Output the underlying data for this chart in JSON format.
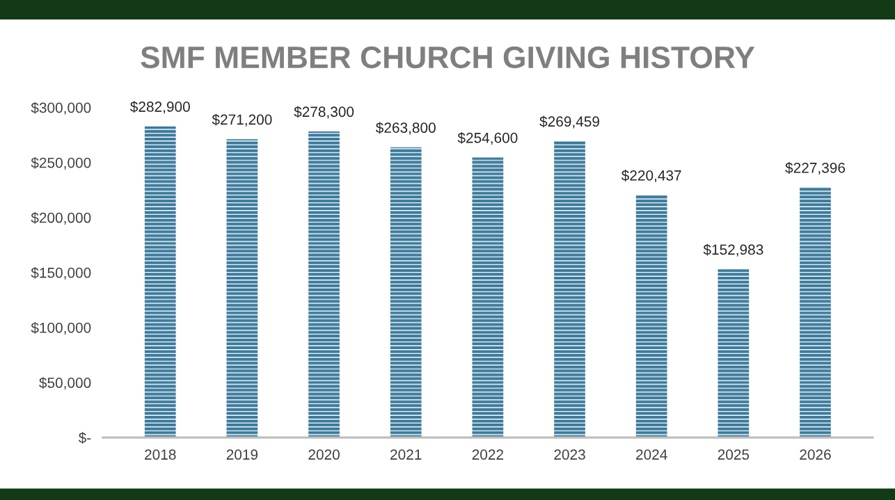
{
  "chart_data": {
    "type": "bar",
    "title": "SMF MEMBER CHURCH GIVING HISTORY",
    "categories": [
      "2018",
      "2019",
      "2020",
      "2021",
      "2022",
      "2023",
      "2024",
      "2025",
      "2026"
    ],
    "values": [
      282900,
      271200,
      278300,
      263800,
      254600,
      269459,
      220437,
      152983,
      227396
    ],
    "value_labels": [
      "$282,900",
      "$271,200",
      "$278,300",
      "$263,800",
      "$254,600",
      "$269,459",
      "$220,437",
      "$152,983",
      "$227,396"
    ],
    "color": "#3b7a9c",
    "ylim": [
      0,
      300000
    ],
    "yticks": [
      {
        "value": 0,
        "label": "$-"
      },
      {
        "value": 50000,
        "label": "$50,000"
      },
      {
        "value": 100000,
        "label": "$100,000"
      },
      {
        "value": 150000,
        "label": "$150,000"
      },
      {
        "value": 200000,
        "label": "$200,000"
      },
      {
        "value": 250000,
        "label": "$250,000"
      },
      {
        "value": 300000,
        "label": "$300,000"
      }
    ],
    "grid": false,
    "legend": false
  }
}
